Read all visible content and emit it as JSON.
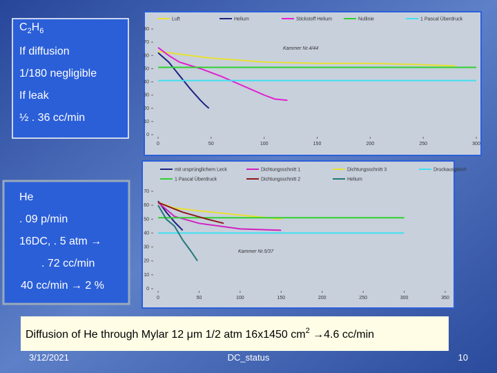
{
  "box1": {
    "formula": [
      "C",
      "2",
      "H",
      "6"
    ],
    "lines": [
      "If diffusion",
      "1/180  negligible",
      "If leak",
      "½    . 36 cc/min"
    ]
  },
  "box2": {
    "lines": [
      "He",
      ". 09 p/min",
      "16DC, . 5 atm →",
      ". 72 cc/min",
      "40 cc/min → 2 %"
    ]
  },
  "summary": [
    "Diffusion of He through Mylar 12 μm 1/2 atm 16x1450 cm",
    "2",
    "  →4.6 cc/min"
  ],
  "footer": {
    "date": "3/12/2021",
    "center": "DC_status",
    "page": "10"
  },
  "chart_data": [
    {
      "type": "line",
      "annotation": "Kammer Nr.4/44",
      "xlim": [
        0,
        300
      ],
      "xticks": [
        0,
        50,
        100,
        150,
        200,
        250,
        300
      ],
      "ylim": [
        0,
        80
      ],
      "yticks": [
        0,
        10,
        20,
        30,
        40,
        50,
        60,
        70,
        80
      ],
      "series": [
        {
          "name": "Luft",
          "color": "#e8e030",
          "x": [
            0,
            20,
            50,
            100,
            150,
            200,
            250,
            280
          ],
          "values": [
            63,
            61,
            58,
            55,
            54,
            54,
            53,
            52
          ]
        },
        {
          "name": "Helium",
          "color": "#1a237e",
          "x": [
            0,
            10,
            20,
            30,
            40,
            45,
            48
          ],
          "values": [
            62,
            55,
            45,
            35,
            26,
            22,
            20
          ]
        },
        {
          "name": "Stickstoff Helium",
          "color": "#e020d0",
          "x": [
            0,
            10,
            20,
            40,
            60,
            80,
            100,
            110,
            122
          ],
          "values": [
            66,
            60,
            55,
            50,
            44,
            37,
            30,
            27,
            26
          ]
        },
        {
          "name": "Nullinie",
          "color": "#30d030",
          "x": [
            0,
            300
          ],
          "values": [
            51,
            51
          ]
        },
        {
          "name": "1 Pascal Überdruck",
          "color": "#40e0f0",
          "x": [
            0,
            300
          ],
          "values": [
            41,
            41
          ]
        }
      ]
    },
    {
      "type": "line",
      "annotation": "Kammer Nr.5/37",
      "xlim": [
        0,
        350
      ],
      "xticks": [
        0,
        50,
        100,
        150,
        200,
        250,
        300,
        350
      ],
      "ylim": [
        0,
        70
      ],
      "yticks": [
        0,
        10,
        20,
        30,
        40,
        50,
        60,
        70
      ],
      "series": [
        {
          "name": "mit ursprünglichem Leck",
          "color": "#1a237e",
          "x": [
            0,
            10,
            20,
            30
          ],
          "values": [
            63,
            55,
            48,
            42
          ]
        },
        {
          "name": "Dichtungsschnitt 1",
          "color": "#d020c0",
          "x": [
            0,
            20,
            50,
            100,
            150
          ],
          "values": [
            62,
            52,
            47,
            43,
            42
          ]
        },
        {
          "name": "Dichtungsschnitt 3",
          "color": "#e8e030",
          "x": [
            0,
            20,
            50,
            100,
            150
          ],
          "values": [
            62,
            58,
            56,
            53,
            50
          ]
        },
        {
          "name": "Druckausgleich",
          "color": "#40e0f0",
          "x": [
            0,
            300
          ],
          "values": [
            40,
            40
          ]
        },
        {
          "name": "1 Pascal Überdruck",
          "color": "#30d030",
          "x": [
            0,
            300
          ],
          "values": [
            51,
            51
          ]
        },
        {
          "name": "Dichtungsschnitt 2",
          "color": "#8b1a1a",
          "x": [
            0,
            30,
            60,
            80
          ],
          "values": [
            62,
            55,
            50,
            47
          ]
        },
        {
          "name": "Helium",
          "color": "#207878",
          "x": [
            0,
            10,
            20,
            30,
            40,
            48
          ],
          "values": [
            60,
            50,
            45,
            35,
            27,
            20
          ]
        }
      ]
    }
  ]
}
